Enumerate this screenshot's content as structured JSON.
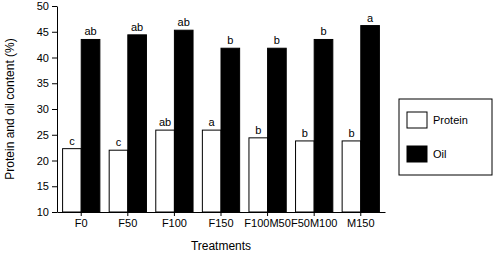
{
  "chart_data": {
    "type": "bar",
    "x_label": "Treatments",
    "y_label": "Protein and oil content (%)",
    "categories": [
      "F0",
      "F50",
      "F100",
      "F150",
      "F100M50",
      "F50M100",
      "M150"
    ],
    "series": [
      {
        "name": "Protein",
        "color": "#ffffff",
        "values": [
          22.3,
          22.0,
          25.9,
          25.9,
          24.4,
          23.8,
          23.8
        ],
        "annotations": [
          "c",
          "c",
          "ab",
          "a",
          "b",
          "b",
          "b"
        ]
      },
      {
        "name": "Oil",
        "color": "#000000",
        "values": [
          43.5,
          44.4,
          45.3,
          41.8,
          41.8,
          43.5,
          46.2
        ],
        "annotations": [
          "ab",
          "ab",
          "ab",
          "b",
          "b",
          "b",
          "a"
        ]
      }
    ],
    "ylim": [
      10,
      50
    ],
    "yticks": [
      10,
      15,
      20,
      25,
      30,
      35,
      40,
      45,
      50
    ],
    "legend": "right",
    "grid": false
  }
}
